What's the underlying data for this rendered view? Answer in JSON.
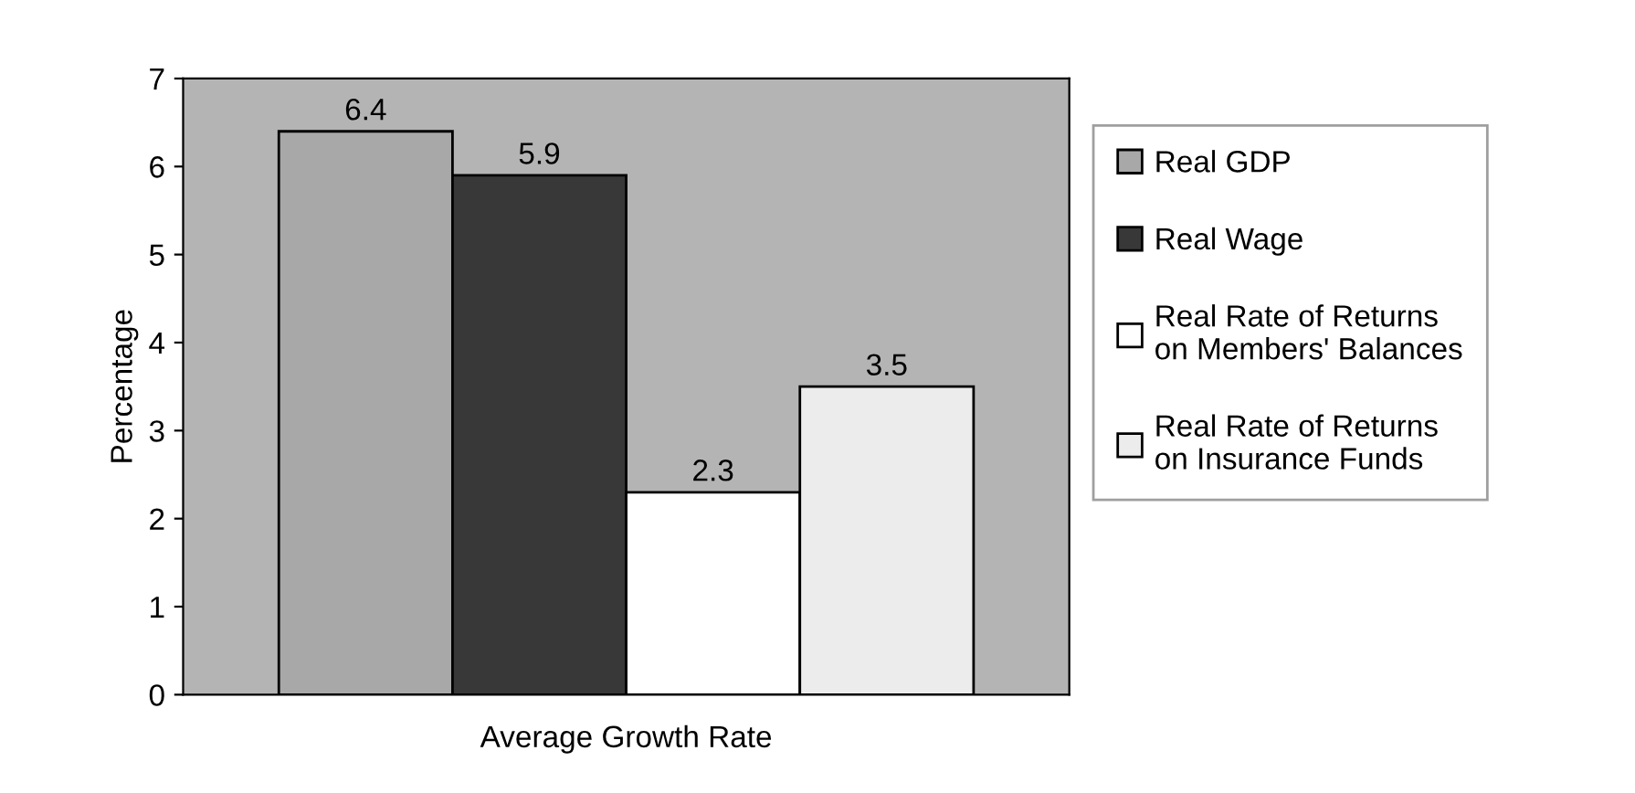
{
  "chart_data": {
    "type": "bar",
    "ylabel": "Percentage",
    "categories": [
      "Average Growth Rate"
    ],
    "series": [
      {
        "name": "Real GDP",
        "color": "#a8a8a8",
        "values": [
          6.4
        ]
      },
      {
        "name": "Real Wage",
        "color": "#383838",
        "values": [
          5.9
        ]
      },
      {
        "name": "Real Rate of Returns\non Members' Balances",
        "color": "#ffffff",
        "values": [
          2.3
        ]
      },
      {
        "name": "Real Rate of Returns\non Insurance Funds",
        "color": "#ececec",
        "values": [
          3.5
        ]
      }
    ],
    "ylim": [
      0,
      7
    ],
    "yticks": [
      0,
      1,
      2,
      3,
      4,
      5,
      6,
      7
    ],
    "data_labels": true,
    "legend": "right",
    "grid": false
  }
}
